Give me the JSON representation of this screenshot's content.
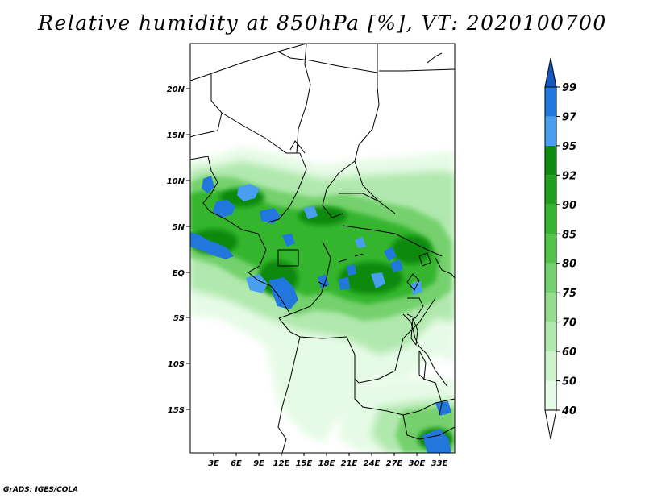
{
  "title": "Relative humidity at 850hPa [%], VT: 2020100700",
  "credit": "GrADS: IGES/COLA",
  "map": {
    "lon_ticks": [
      "3E",
      "6E",
      "9E",
      "12E",
      "15E",
      "18E",
      "21E",
      "24E",
      "27E",
      "30E",
      "33E"
    ],
    "lat_ticks": [
      "20N",
      "15N",
      "10N",
      "5N",
      "EQ",
      "5S",
      "10S",
      "15S"
    ],
    "colors": {
      "c40_50": "#e6fbe6",
      "c50_60": "#cdf3cc",
      "c60_70": "#b0e8ad",
      "c70_75": "#94dd8f",
      "c75_80": "#74d16d",
      "c80_85": "#52c44a",
      "c85_90": "#36b52e",
      "c90_92": "#1fa01a",
      "c92_95": "#108a10",
      "c95_97": "#4a9ef0",
      "c97_99": "#2277dd",
      "c99": "#1458c4"
    }
  },
  "colorbar": {
    "levels": [
      "40",
      "50",
      "60",
      "70",
      "75",
      "80",
      "85",
      "90",
      "92",
      "95",
      "97",
      "99"
    ],
    "colors": [
      "#ffffff",
      "#e6fbe6",
      "#cdf3cc",
      "#b0e8ad",
      "#94dd8f",
      "#74d16d",
      "#52c44a",
      "#36b52e",
      "#1fa01a",
      "#108a10",
      "#4a9ef0",
      "#2277dd",
      "#1458c4"
    ]
  }
}
